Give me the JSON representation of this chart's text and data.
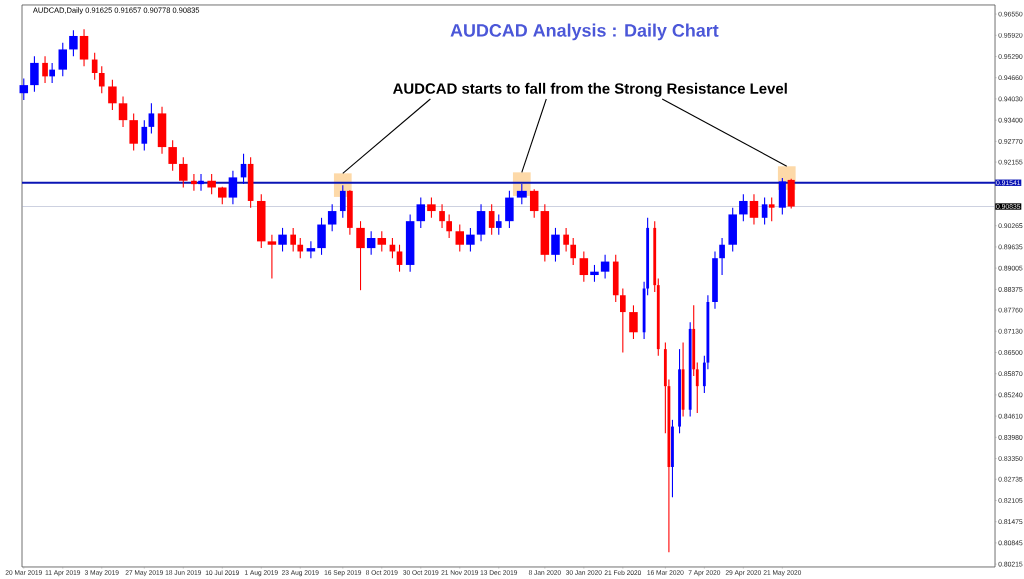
{
  "chart_data": {
    "type": "candlestick",
    "title": "AUDCAD Analysis : Daily Chart",
    "annotations": [
      "AUDCAD,Daily  0.91625 0.91657 0.90778 0.90835",
      "AUDCAD starts to fall from the Strong Resistance Level"
    ],
    "x": [
      "2019-03-20",
      "2019-03-26",
      "2019-04-01",
      "2019-04-05",
      "2019-04-11",
      "2019-04-17",
      "2019-04-23",
      "2019-04-29",
      "2019-05-03",
      "2019-05-09",
      "2019-05-15",
      "2019-05-21",
      "2019-05-27",
      "2019-05-31",
      "2019-06-06",
      "2019-06-12",
      "2019-06-18",
      "2019-06-24",
      "2019-06-28",
      "2019-07-04",
      "2019-07-10",
      "2019-07-16",
      "2019-07-22",
      "2019-07-26",
      "2019-08-01",
      "2019-08-07",
      "2019-08-13",
      "2019-08-19",
      "2019-08-23",
      "2019-08-29",
      "2019-09-04",
      "2019-09-10",
      "2019-09-16",
      "2019-09-20",
      "2019-09-26",
      "2019-10-02",
      "2019-10-08",
      "2019-10-14",
      "2019-10-18",
      "2019-10-24",
      "2019-10-30",
      "2019-11-05",
      "2019-11-11",
      "2019-11-15",
      "2019-11-21",
      "2019-11-27",
      "2019-12-03",
      "2019-12-09",
      "2019-12-13",
      "2019-12-19",
      "2019-12-26",
      "2020-01-02",
      "2020-01-08",
      "2020-01-14",
      "2020-01-20",
      "2020-01-24",
      "2020-01-30",
      "2020-02-05",
      "2020-02-11",
      "2020-02-17",
      "2020-02-21",
      "2020-02-27",
      "2020-03-04",
      "2020-03-06",
      "2020-03-10",
      "2020-03-12",
      "2020-03-16",
      "2020-03-18",
      "2020-03-20",
      "2020-03-24",
      "2020-03-26",
      "2020-03-30",
      "2020-04-01",
      "2020-04-03",
      "2020-04-07",
      "2020-04-09",
      "2020-04-13",
      "2020-04-17",
      "2020-04-23",
      "2020-04-29",
      "2020-05-05",
      "2020-05-11",
      "2020-05-15",
      "2020-05-21",
      "2020-05-26"
    ],
    "ohlc": [
      [
        0.942,
        0.9464,
        0.94,
        0.9444
      ],
      [
        0.9444,
        0.953,
        0.9424,
        0.951
      ],
      [
        0.951,
        0.953,
        0.945,
        0.947
      ],
      [
        0.947,
        0.951,
        0.945,
        0.949
      ],
      [
        0.949,
        0.957,
        0.947,
        0.955
      ],
      [
        0.955,
        0.9607,
        0.953,
        0.959
      ],
      [
        0.959,
        0.961,
        0.95,
        0.952
      ],
      [
        0.952,
        0.954,
        0.946,
        0.948
      ],
      [
        0.948,
        0.95,
        0.942,
        0.944
      ],
      [
        0.944,
        0.946,
        0.937,
        0.939
      ],
      [
        0.939,
        0.941,
        0.932,
        0.934
      ],
      [
        0.934,
        0.936,
        0.925,
        0.927
      ],
      [
        0.927,
        0.934,
        0.925,
        0.932
      ],
      [
        0.932,
        0.939,
        0.93,
        0.936
      ],
      [
        0.936,
        0.938,
        0.924,
        0.926
      ],
      [
        0.926,
        0.928,
        0.919,
        0.921
      ],
      [
        0.921,
        0.923,
        0.914,
        0.916
      ],
      [
        0.916,
        0.918,
        0.913,
        0.915
      ],
      [
        0.915,
        0.918,
        0.913,
        0.916
      ],
      [
        0.916,
        0.918,
        0.912,
        0.914
      ],
      [
        0.914,
        0.9142,
        0.909,
        0.911
      ],
      [
        0.911,
        0.919,
        0.909,
        0.917
      ],
      [
        0.917,
        0.924,
        0.915,
        0.921
      ],
      [
        0.921,
        0.923,
        0.908,
        0.91
      ],
      [
        0.91,
        0.912,
        0.896,
        0.898
      ],
      [
        0.898,
        0.9,
        0.887,
        0.897
      ],
      [
        0.897,
        0.902,
        0.895,
        0.9
      ],
      [
        0.9,
        0.902,
        0.895,
        0.897
      ],
      [
        0.897,
        0.899,
        0.893,
        0.895
      ],
      [
        0.895,
        0.898,
        0.893,
        0.896
      ],
      [
        0.896,
        0.905,
        0.894,
        0.903
      ],
      [
        0.903,
        0.909,
        0.901,
        0.907
      ],
      [
        0.907,
        0.9147,
        0.905,
        0.913
      ],
      [
        0.913,
        0.9132,
        0.9,
        0.902
      ],
      [
        0.902,
        0.904,
        0.8835,
        0.896
      ],
      [
        0.896,
        0.901,
        0.894,
        0.899
      ],
      [
        0.899,
        0.901,
        0.895,
        0.897
      ],
      [
        0.897,
        0.899,
        0.893,
        0.895
      ],
      [
        0.895,
        0.897,
        0.889,
        0.891
      ],
      [
        0.891,
        0.906,
        0.889,
        0.904
      ],
      [
        0.904,
        0.911,
        0.902,
        0.909
      ],
      [
        0.909,
        0.911,
        0.905,
        0.907
      ],
      [
        0.907,
        0.909,
        0.902,
        0.904
      ],
      [
        0.904,
        0.906,
        0.899,
        0.901
      ],
      [
        0.901,
        0.903,
        0.895,
        0.897
      ],
      [
        0.897,
        0.902,
        0.895,
        0.9
      ],
      [
        0.9,
        0.909,
        0.898,
        0.907
      ],
      [
        0.907,
        0.909,
        0.9,
        0.902
      ],
      [
        0.902,
        0.906,
        0.9,
        0.904
      ],
      [
        0.904,
        0.913,
        0.902,
        0.911
      ],
      [
        0.911,
        0.915,
        0.909,
        0.913
      ],
      [
        0.913,
        0.9135,
        0.905,
        0.907
      ],
      [
        0.907,
        0.909,
        0.892,
        0.894
      ],
      [
        0.894,
        0.902,
        0.892,
        0.9
      ],
      [
        0.9,
        0.902,
        0.895,
        0.897
      ],
      [
        0.897,
        0.899,
        0.891,
        0.893
      ],
      [
        0.893,
        0.895,
        0.886,
        0.888
      ],
      [
        0.888,
        0.891,
        0.886,
        0.889
      ],
      [
        0.889,
        0.894,
        0.887,
        0.892
      ],
      [
        0.892,
        0.894,
        0.88,
        0.882
      ],
      [
        0.882,
        0.884,
        0.865,
        0.877
      ],
      [
        0.877,
        0.879,
        0.869,
        0.871
      ],
      [
        0.871,
        0.886,
        0.869,
        0.884
      ],
      [
        0.884,
        0.905,
        0.882,
        0.902
      ],
      [
        0.902,
        0.904,
        0.883,
        0.885
      ],
      [
        0.885,
        0.887,
        0.864,
        0.866
      ],
      [
        0.866,
        0.868,
        0.841,
        0.855
      ],
      [
        0.855,
        0.857,
        0.8057,
        0.831
      ],
      [
        0.831,
        0.845,
        0.822,
        0.843
      ],
      [
        0.843,
        0.866,
        0.841,
        0.86
      ],
      [
        0.86,
        0.868,
        0.846,
        0.848
      ],
      [
        0.848,
        0.874,
        0.846,
        0.872
      ],
      [
        0.872,
        0.879,
        0.858,
        0.86
      ],
      [
        0.86,
        0.862,
        0.847,
        0.855
      ],
      [
        0.855,
        0.864,
        0.853,
        0.862
      ],
      [
        0.862,
        0.882,
        0.86,
        0.88
      ],
      [
        0.88,
        0.895,
        0.878,
        0.893
      ],
      [
        0.893,
        0.899,
        0.888,
        0.897
      ],
      [
        0.897,
        0.908,
        0.895,
        0.906
      ],
      [
        0.906,
        0.912,
        0.904,
        0.91
      ],
      [
        0.91,
        0.912,
        0.903,
        0.905
      ],
      [
        0.905,
        0.911,
        0.903,
        0.909
      ],
      [
        0.909,
        0.911,
        0.904,
        0.908
      ],
      [
        0.908,
        0.9168,
        0.906,
        0.9158
      ],
      [
        0.91625,
        0.91657,
        0.90778,
        0.90835
      ]
    ],
    "xlim": [
      "2019-03-19",
      "2020-09-18"
    ],
    "xticks": [
      {
        "value": "2019-03-20",
        "label": "20 Mar 2019"
      },
      {
        "value": "2019-04-11",
        "label": "11 Apr 2019"
      },
      {
        "value": "2019-05-03",
        "label": "3 May 2019"
      },
      {
        "value": "2019-05-27",
        "label": "27 May 2019"
      },
      {
        "value": "2019-06-18",
        "label": "18 Jun 2019"
      },
      {
        "value": "2019-07-10",
        "label": "10 Jul 2019"
      },
      {
        "value": "2019-08-01",
        "label": "1 Aug 2019"
      },
      {
        "value": "2019-08-23",
        "label": "23 Aug 2019"
      },
      {
        "value": "2019-09-16",
        "label": "16 Sep 2019"
      },
      {
        "value": "2019-10-08",
        "label": "8 Oct 2019"
      },
      {
        "value": "2019-10-30",
        "label": "30 Oct 2019"
      },
      {
        "value": "2019-11-21",
        "label": "21 Nov 2019"
      },
      {
        "value": "2019-12-13",
        "label": "13 Dec 2019"
      },
      {
        "value": "2020-01-08",
        "label": "8 Jan 2020"
      },
      {
        "value": "2020-01-30",
        "label": "30 Jan 2020"
      },
      {
        "value": "2020-02-21",
        "label": "21 Feb 2020"
      },
      {
        "value": "2020-03-16",
        "label": "16 Mar 2020"
      },
      {
        "value": "2020-04-07",
        "label": "7 Apr 2020"
      },
      {
        "value": "2020-04-29",
        "label": "29 Apr 2020"
      },
      {
        "value": "2020-05-21",
        "label": "21 May 2020"
      }
    ],
    "ylim": [
      0.8013,
      0.9682
    ],
    "yticks": [
      {
        "value": 0.9655,
        "label": "0.96550"
      },
      {
        "value": 0.9592,
        "label": "0.95920"
      },
      {
        "value": 0.9529,
        "label": "0.95290"
      },
      {
        "value": 0.9466,
        "label": "0.94660"
      },
      {
        "value": 0.9403,
        "label": "0.94030"
      },
      {
        "value": 0.934,
        "label": "0.93400"
      },
      {
        "value": 0.9277,
        "label": "0.92770"
      },
      {
        "value": 0.92155,
        "label": "0.92155"
      },
      {
        "value": 0.90265,
        "label": "0.90265"
      },
      {
        "value": 0.89635,
        "label": "0.89635"
      },
      {
        "value": 0.89005,
        "label": "0.89005"
      },
      {
        "value": 0.88375,
        "label": "0.88375"
      },
      {
        "value": 0.8776,
        "label": "0.87760"
      },
      {
        "value": 0.8713,
        "label": "0.87130"
      },
      {
        "value": 0.865,
        "label": "0.86500"
      },
      {
        "value": 0.8587,
        "label": "0.85870"
      },
      {
        "value": 0.8524,
        "label": "0.85240"
      },
      {
        "value": 0.8461,
        "label": "0.84610"
      },
      {
        "value": 0.8398,
        "label": "0.83980"
      },
      {
        "value": 0.8335,
        "label": "0.83350"
      },
      {
        "value": 0.82735,
        "label": "0.82735"
      },
      {
        "value": 0.82105,
        "label": "0.82105"
      },
      {
        "value": 0.81475,
        "label": "0.81475"
      },
      {
        "value": 0.80845,
        "label": "0.80845"
      },
      {
        "value": 0.80215,
        "label": "0.80215"
      }
    ],
    "ref_lines": [
      {
        "axis": "y",
        "value": 0.91541,
        "label": "0.91541",
        "color": "#0a14b4"
      },
      {
        "axis": "y",
        "value": 0.90835,
        "label": "0.90835",
        "color": "#9aa2c0"
      }
    ],
    "grid": false
  }
}
